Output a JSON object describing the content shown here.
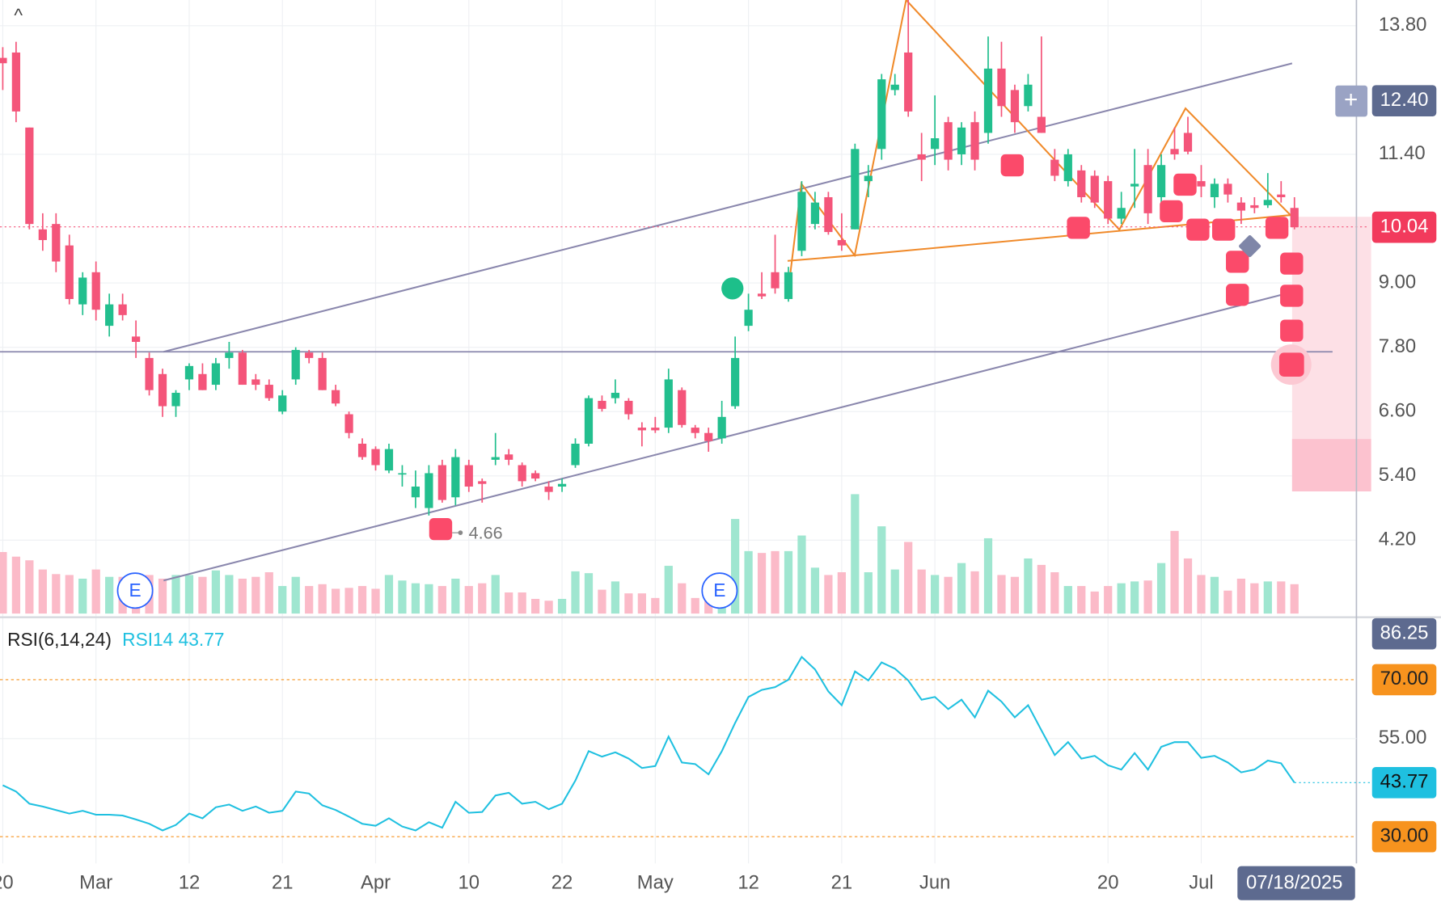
{
  "chart_data": {
    "type": "candlestick",
    "categories": [
      "20",
      null,
      null,
      null,
      null,
      null,
      null,
      "Mar",
      null,
      null,
      null,
      null,
      null,
      null,
      "12",
      null,
      null,
      null,
      null,
      null,
      null,
      "21",
      null,
      null,
      null,
      null,
      null,
      null,
      "Apr",
      null,
      null,
      null,
      null,
      null,
      null,
      "10",
      null,
      null,
      null,
      null,
      null,
      null,
      "22",
      null,
      null,
      null,
      null,
      null,
      null,
      "May",
      null,
      null,
      null,
      null,
      null,
      null,
      "12",
      null,
      null,
      null,
      null,
      null,
      null,
      "21",
      null,
      null,
      null,
      null,
      null,
      null,
      "Jun",
      null,
      null,
      null,
      null,
      null,
      null,
      null,
      null,
      null,
      null,
      null,
      null,
      "20",
      null,
      null,
      null,
      null,
      null,
      null,
      "Jul",
      null,
      null,
      null,
      null,
      null,
      null,
      "07/18/2025"
    ],
    "open": [
      13.2,
      13.3,
      11.9,
      10.0,
      10.1,
      9.7,
      8.6,
      9.2,
      8.2,
      8.6,
      8.0,
      7.6,
      7.3,
      6.7,
      7.2,
      7.3,
      7.1,
      7.6,
      7.7,
      7.2,
      7.1,
      6.6,
      7.2,
      7.7,
      7.6,
      7.0,
      6.55,
      6.0,
      5.9,
      5.5,
      5.45,
      5.0,
      4.8,
      5.6,
      5.0,
      5.6,
      5.3,
      5.7,
      5.8,
      5.6,
      5.45,
      5.2,
      5.2,
      5.6,
      6.0,
      6.8,
      6.85,
      6.8,
      6.3,
      6.3,
      6.3,
      7.0,
      6.3,
      6.2,
      6.1,
      6.7,
      8.2,
      8.8,
      9.2,
      8.7,
      9.6,
      10.1,
      10.6,
      9.8,
      10.0,
      10.9,
      11.5,
      12.6,
      13.3,
      11.4,
      11.5,
      12.0,
      11.4,
      12.0,
      11.8,
      13.0,
      12.6,
      12.3,
      12.1,
      11.3,
      10.9,
      11.1,
      11.0,
      10.9,
      10.2,
      10.8,
      11.2,
      10.6,
      11.5,
      11.8,
      10.9,
      10.6,
      10.85,
      10.5,
      10.45,
      10.45,
      10.65,
      10.4
    ],
    "high": [
      13.4,
      13.5,
      11.9,
      10.3,
      10.3,
      9.9,
      9.2,
      9.4,
      8.8,
      8.8,
      8.3,
      7.7,
      7.4,
      7.0,
      7.5,
      7.5,
      7.6,
      7.9,
      7.75,
      7.3,
      7.2,
      7.0,
      7.8,
      7.75,
      7.7,
      7.1,
      6.6,
      6.1,
      5.95,
      6.0,
      5.6,
      5.5,
      5.6,
      5.7,
      5.9,
      5.7,
      5.35,
      6.2,
      5.9,
      5.65,
      5.5,
      5.3,
      5.35,
      6.1,
      6.9,
      6.9,
      7.2,
      6.85,
      6.4,
      6.5,
      7.4,
      7.05,
      6.35,
      6.3,
      6.8,
      8.0,
      8.8,
      9.2,
      9.9,
      9.3,
      10.9,
      10.7,
      10.7,
      10.3,
      11.6,
      11.2,
      12.9,
      12.9,
      14.3,
      11.8,
      12.5,
      12.1,
      12.0,
      12.2,
      13.6,
      13.5,
      12.7,
      12.9,
      13.6,
      11.5,
      11.5,
      11.2,
      11.1,
      11.0,
      10.7,
      11.5,
      11.5,
      11.4,
      11.9,
      12.1,
      11.2,
      10.95,
      10.95,
      10.6,
      10.6,
      11.05,
      10.9,
      10.6
    ],
    "low": [
      12.6,
      12.0,
      10.0,
      9.6,
      9.2,
      8.6,
      8.4,
      8.3,
      8.0,
      8.3,
      7.6,
      6.9,
      6.5,
      6.5,
      7.0,
      7.0,
      7.0,
      7.4,
      7.1,
      7.0,
      6.8,
      6.55,
      7.1,
      7.5,
      7.0,
      6.7,
      6.1,
      5.7,
      5.5,
      5.45,
      5.2,
      4.8,
      4.66,
      4.9,
      4.85,
      5.1,
      4.9,
      5.6,
      5.6,
      5.2,
      5.3,
      4.95,
      5.1,
      5.55,
      5.95,
      6.6,
      6.75,
      6.45,
      5.95,
      6.2,
      6.2,
      6.3,
      6.1,
      5.85,
      6.0,
      6.65,
      8.1,
      8.7,
      8.8,
      8.65,
      9.5,
      10.0,
      9.9,
      9.6,
      10.0,
      10.6,
      11.3,
      12.5,
      12.1,
      10.9,
      11.2,
      11.1,
      11.2,
      11.1,
      11.6,
      12.1,
      11.8,
      12.2,
      11.8,
      10.9,
      10.8,
      10.5,
      10.4,
      10.1,
      10.1,
      10.4,
      10.1,
      10.4,
      11.3,
      11.4,
      10.6,
      10.4,
      10.5,
      10.1,
      10.3,
      10.4,
      10.5,
      10.0
    ],
    "close": [
      13.1,
      12.2,
      10.1,
      9.8,
      9.4,
      8.7,
      9.1,
      8.5,
      8.6,
      8.4,
      7.9,
      7.0,
      6.7,
      6.95,
      7.45,
      7.0,
      7.5,
      7.7,
      7.1,
      7.1,
      6.85,
      6.9,
      7.75,
      7.6,
      7.0,
      6.75,
      6.2,
      5.75,
      5.6,
      5.9,
      5.45,
      5.2,
      5.45,
      4.95,
      5.75,
      5.2,
      5.25,
      5.75,
      5.7,
      5.3,
      5.35,
      5.1,
      5.25,
      6.0,
      6.85,
      6.65,
      6.95,
      6.55,
      6.25,
      6.25,
      7.2,
      6.35,
      6.2,
      6.05,
      6.5,
      7.6,
      8.5,
      8.75,
      8.9,
      9.2,
      10.7,
      10.5,
      9.95,
      9.7,
      11.5,
      11.0,
      12.8,
      12.7,
      12.2,
      11.3,
      11.7,
      11.3,
      11.9,
      11.3,
      13.0,
      12.3,
      12.0,
      12.7,
      11.8,
      11.0,
      11.4,
      10.6,
      10.5,
      10.2,
      10.4,
      10.85,
      10.3,
      11.2,
      11.4,
      11.45,
      10.8,
      10.85,
      10.65,
      10.35,
      10.4,
      10.55,
      10.6,
      10.04
    ],
    "up_color": "#22bf8e",
    "down_color": "#f4557a",
    "ylim": [
      2.83,
      14.28
    ],
    "yticks": [
      {
        "value": 13.8,
        "label": "13.80"
      },
      {
        "value": 11.4,
        "label": "11.40"
      },
      {
        "value": 9.0,
        "label": "9.00"
      },
      {
        "value": 7.8,
        "label": "7.80"
      },
      {
        "value": 6.6,
        "label": "6.60"
      },
      {
        "value": 5.4,
        "label": "5.40"
      },
      {
        "value": 4.2,
        "label": "4.20"
      }
    ],
    "grid": true,
    "crosshair_price": {
      "value": 12.4,
      "label": "12.40"
    },
    "last_price": {
      "value": 10.04,
      "label": "10.04"
    },
    "low_label": {
      "value": 4.66,
      "label": "4.66"
    },
    "earnings_markers": [
      "E",
      "E"
    ],
    "volume": {
      "values": [
        67,
        62,
        58,
        48,
        43,
        42,
        38,
        48,
        40,
        40,
        40,
        42,
        38,
        42,
        42,
        40,
        47,
        42,
        38,
        40,
        45,
        30,
        40,
        30,
        32,
        27,
        28,
        30,
        27,
        42,
        36,
        33,
        32,
        30,
        38,
        30,
        33,
        42,
        23,
        23,
        16,
        14,
        16,
        46,
        44,
        26,
        35,
        22,
        22,
        17,
        52,
        33,
        17,
        22,
        36,
        103,
        68,
        66,
        68,
        68,
        85,
        50,
        42,
        45,
        130,
        45,
        95,
        48,
        78,
        48,
        42,
        40,
        55,
        46,
        82,
        42,
        40,
        60,
        53,
        45,
        30,
        30,
        24,
        30,
        33,
        35,
        36,
        55,
        90,
        60,
        42,
        40,
        25,
        38,
        33,
        35,
        35,
        32
      ],
      "vlim": [
        0,
        130
      ],
      "up_color": "#9fe6d0",
      "down_color": "#fbbac8"
    },
    "rsi": {
      "legend_title": "RSI(6,14,24)",
      "legend_value": "RSI14 43.77",
      "color": "#1fc0e0",
      "values": [
        43.1,
        41.5,
        38.4,
        37.7,
        36.8,
        35.9,
        36.6,
        35.6,
        35.6,
        35.4,
        34.4,
        33.3,
        31.6,
        33.0,
        35.9,
        34.7,
        37.5,
        38.2,
        36.6,
        37.7,
        36.1,
        36.6,
        41.5,
        41.0,
        38.0,
        36.8,
        35.1,
        33.3,
        32.8,
        34.7,
        32.6,
        31.6,
        33.7,
        32.3,
        38.9,
        36.1,
        36.3,
        40.5,
        41.2,
        38.4,
        38.9,
        37.0,
        38.4,
        44.3,
        51.8,
        50.4,
        51.5,
        49.9,
        47.5,
        48.0,
        55.5,
        48.9,
        48.5,
        45.9,
        51.8,
        59.0,
        65.6,
        67.4,
        68.1,
        70.0,
        75.8,
        72.6,
        67.0,
        63.5,
        72.1,
        69.8,
        74.4,
        72.8,
        69.8,
        64.9,
        65.6,
        62.5,
        64.9,
        60.4,
        67.2,
        64.4,
        60.4,
        63.5,
        57.1,
        50.8,
        54.1,
        49.9,
        50.6,
        48.2,
        47.1,
        51.3,
        47.1,
        52.9,
        54.1,
        54.1,
        50.1,
        50.6,
        48.9,
        46.4,
        47.1,
        49.4,
        48.7,
        43.77
      ],
      "ylim": [
        23.2,
        85.9
      ],
      "yticks": [
        {
          "value": 70,
          "label": "70.00"
        },
        {
          "value": 55,
          "label": "55.00"
        },
        {
          "value": 30,
          "label": "30.00"
        }
      ],
      "band_color": "#f7931e",
      "max_label": {
        "value": 86.25,
        "label": "86.25"
      },
      "last_label": {
        "value": 43.77,
        "label": "43.77"
      }
    }
  }
}
